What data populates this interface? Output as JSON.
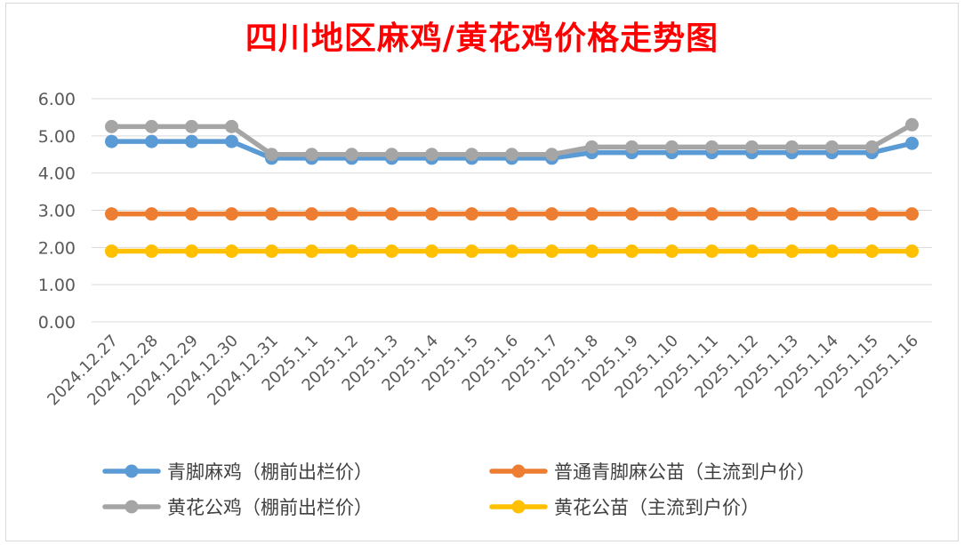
{
  "chart_data": {
    "type": "line",
    "title": "四川地区麻鸡/黄花鸡价格走势图",
    "xlabel": "",
    "ylabel": "",
    "ylim": [
      0,
      6
    ],
    "yticks": [
      "0.00",
      "1.00",
      "2.00",
      "3.00",
      "4.00",
      "5.00",
      "6.00"
    ],
    "grid": true,
    "legend": "bottom",
    "categories": [
      "2024.12.27",
      "2024.12.28",
      "2024.12.29",
      "2024.12.30",
      "2024.12.31",
      "2025.1.1",
      "2025.1.2",
      "2025.1.3",
      "2025.1.4",
      "2025.1.5",
      "2025.1.6",
      "2025.1.7",
      "2025.1.8",
      "2025.1.9",
      "2025.1.10",
      "2025.1.11",
      "2025.1.12",
      "2025.1.13",
      "2025.1.14",
      "2025.1.15",
      "2025.1.16"
    ],
    "series": [
      {
        "name": "青脚麻鸡（棚前出栏价）",
        "color": "#5b9bd5",
        "values": [
          4.85,
          4.85,
          4.85,
          4.85,
          4.4,
          4.4,
          4.4,
          4.4,
          4.4,
          4.4,
          4.4,
          4.4,
          4.55,
          4.55,
          4.55,
          4.55,
          4.55,
          4.55,
          4.55,
          4.55,
          4.8
        ]
      },
      {
        "name": "普通青脚麻公苗（主流到户价）",
        "color": "#ed7d31",
        "values": [
          2.9,
          2.9,
          2.9,
          2.9,
          2.9,
          2.9,
          2.9,
          2.9,
          2.9,
          2.9,
          2.9,
          2.9,
          2.9,
          2.9,
          2.9,
          2.9,
          2.9,
          2.9,
          2.9,
          2.9,
          2.9
        ]
      },
      {
        "name": "黄花公鸡（棚前出栏价）",
        "color": "#a5a5a5",
        "values": [
          5.25,
          5.25,
          5.25,
          5.25,
          4.5,
          4.5,
          4.5,
          4.5,
          4.5,
          4.5,
          4.5,
          4.5,
          4.7,
          4.7,
          4.7,
          4.7,
          4.7,
          4.7,
          4.7,
          4.7,
          5.3
        ]
      },
      {
        "name": "黄花公苗（主流到户价）",
        "color": "#ffc000",
        "values": [
          1.9,
          1.9,
          1.9,
          1.9,
          1.9,
          1.9,
          1.9,
          1.9,
          1.9,
          1.9,
          1.9,
          1.9,
          1.9,
          1.9,
          1.9,
          1.9,
          1.9,
          1.9,
          1.9,
          1.9,
          1.9
        ]
      }
    ]
  }
}
